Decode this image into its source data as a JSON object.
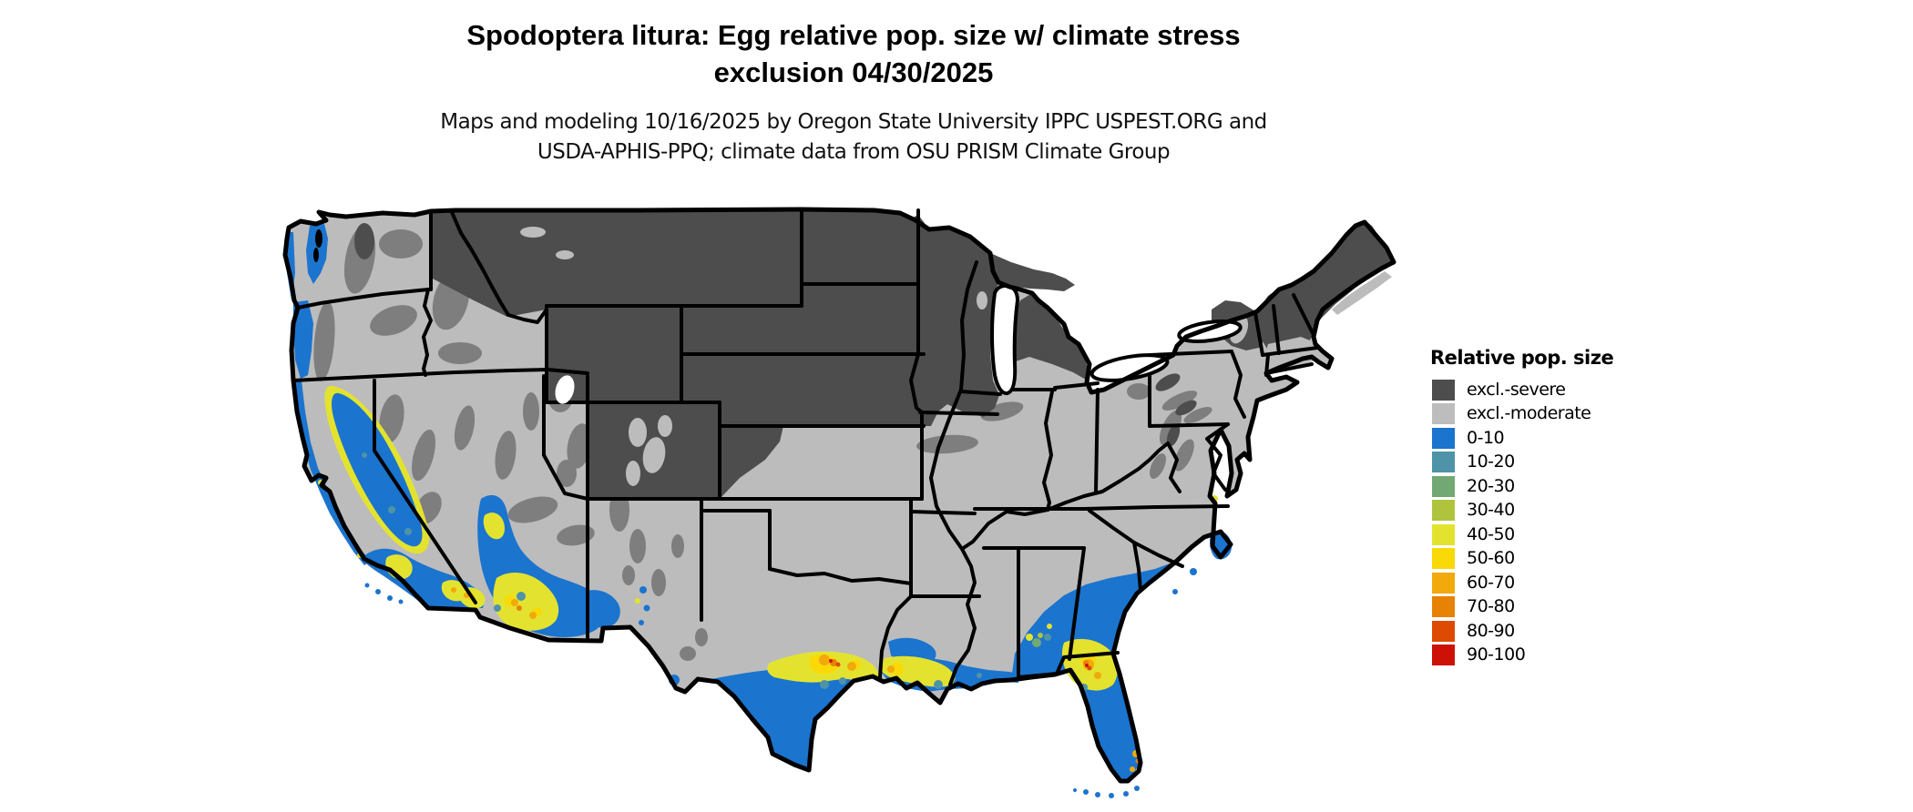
{
  "header": {
    "title_line1": "Spodoptera litura: Egg relative pop. size w/ climate stress",
    "title_line2": "exclusion 04/30/2025",
    "subtitle_line1": "Maps and modeling 10/16/2025 by Oregon State University IPPC USPEST.ORG and",
    "subtitle_line2": "USDA-APHIS-PPQ; climate data from OSU PRISM Climate Group"
  },
  "legend": {
    "title": "Relative pop. size",
    "items": [
      {
        "label": "excl.-severe",
        "color": "#4d4d4d"
      },
      {
        "label": "excl.-moderate",
        "color": "#bdbdbd"
      },
      {
        "label": "0-10",
        "color": "#1b74ce"
      },
      {
        "label": "10-20",
        "color": "#4e93a8"
      },
      {
        "label": "20-30",
        "color": "#72a874"
      },
      {
        "label": "30-40",
        "color": "#afc43c"
      },
      {
        "label": "40-50",
        "color": "#e3e32f"
      },
      {
        "label": "50-60",
        "color": "#f9d908"
      },
      {
        "label": "60-70",
        "color": "#f2a90c"
      },
      {
        "label": "70-80",
        "color": "#e88205"
      },
      {
        "label": "80-90",
        "color": "#dd4a04"
      },
      {
        "label": "90-100",
        "color": "#cd1106"
      }
    ]
  },
  "map": {
    "colors": {
      "excl_severe": "#4d4d4d",
      "excl_moderate": "#bcbcbc",
      "excl_medium": "#7e7e7e",
      "c0_10": "#1b74ce",
      "c10_20": "#4e93a8",
      "c20_30": "#72a874",
      "c30_40": "#afc43c",
      "c40_50": "#e3e32f",
      "c50_60": "#f9d908",
      "c60_70": "#f2a90c",
      "c70_80": "#e88205",
      "c80_90": "#dd4a04",
      "c90_100": "#cd1106",
      "border": "#000000",
      "water": "#ffffff"
    }
  }
}
